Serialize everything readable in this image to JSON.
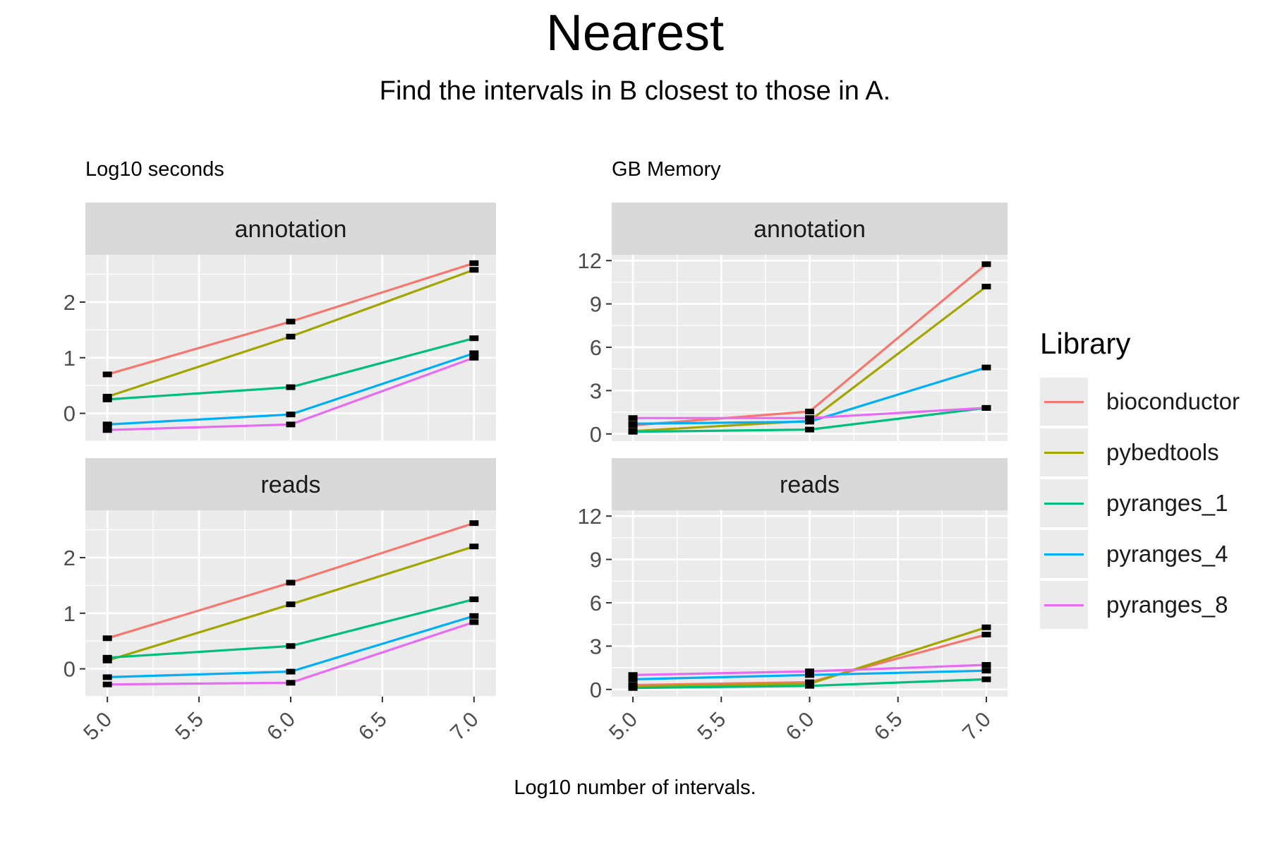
{
  "title": "Nearest",
  "subtitle": "Find the intervals in B closest to those in A.",
  "xlabel": "Log10 number of intervals.",
  "legend": {
    "title": "Library",
    "items": [
      {
        "label": "bioconductor",
        "color": "#F8766D"
      },
      {
        "label": "pybedtools",
        "color": "#A3A500"
      },
      {
        "label": "pyranges_1",
        "color": "#00BF7D"
      },
      {
        "label": "pyranges_4",
        "color": "#00B0F6"
      },
      {
        "label": "pyranges_8",
        "color": "#E76BF3"
      }
    ]
  },
  "chart_data": [
    {
      "type": "line",
      "caption": "Log10 seconds",
      "facet": "annotation",
      "x": [
        5.0,
        6.0,
        7.0
      ],
      "xticks": [
        "5.0",
        "5.5",
        "6.0",
        "6.5",
        "7.0"
      ],
      "yticks": [
        "0",
        "1",
        "2"
      ],
      "xlim": [
        4.88,
        7.12
      ],
      "ylim": [
        -0.5,
        2.85
      ],
      "grid": true,
      "legend_position": "right",
      "series": [
        {
          "name": "bioconductor",
          "values": [
            0.7,
            1.65,
            2.7
          ]
        },
        {
          "name": "pybedtools",
          "values": [
            0.3,
            1.38,
            2.58
          ]
        },
        {
          "name": "pyranges_1",
          "values": [
            0.25,
            0.47,
            1.35
          ]
        },
        {
          "name": "pyranges_4",
          "values": [
            -0.2,
            -0.02,
            1.08
          ]
        },
        {
          "name": "pyranges_8",
          "values": [
            -0.3,
            -0.2,
            1.0
          ]
        }
      ]
    },
    {
      "type": "line",
      "caption": "Log10 seconds",
      "facet": "reads",
      "x": [
        5.0,
        6.0,
        7.0
      ],
      "xticks": [
        "5.0",
        "5.5",
        "6.0",
        "6.5",
        "7.0"
      ],
      "yticks": [
        "0",
        "1",
        "2"
      ],
      "xlim": [
        4.88,
        7.12
      ],
      "ylim": [
        -0.5,
        2.85
      ],
      "grid": true,
      "legend_position": "right",
      "series": [
        {
          "name": "bioconductor",
          "values": [
            0.55,
            1.55,
            2.62
          ]
        },
        {
          "name": "pybedtools",
          "values": [
            0.15,
            1.16,
            2.2
          ]
        },
        {
          "name": "pyranges_1",
          "values": [
            0.2,
            0.41,
            1.25
          ]
        },
        {
          "name": "pyranges_4",
          "values": [
            -0.15,
            -0.05,
            0.95
          ]
        },
        {
          "name": "pyranges_8",
          "values": [
            -0.28,
            -0.25,
            0.84
          ]
        }
      ]
    },
    {
      "type": "line",
      "caption": "GB Memory",
      "facet": "annotation",
      "x": [
        5.0,
        6.0,
        7.0
      ],
      "xticks": [
        "5.0",
        "5.5",
        "6.0",
        "6.5",
        "7.0"
      ],
      "yticks": [
        "0",
        "3",
        "6",
        "9",
        "12"
      ],
      "xlim": [
        4.88,
        7.12
      ],
      "ylim": [
        -0.5,
        12.4
      ],
      "grid": true,
      "legend_position": "right",
      "series": [
        {
          "name": "bioconductor",
          "values": [
            0.6,
            1.55,
            11.75
          ]
        },
        {
          "name": "pybedtools",
          "values": [
            0.2,
            0.9,
            10.2
          ]
        },
        {
          "name": "pyranges_1",
          "values": [
            0.15,
            0.3,
            1.8
          ]
        },
        {
          "name": "pyranges_4",
          "values": [
            0.7,
            0.85,
            4.6
          ]
        },
        {
          "name": "pyranges_8",
          "values": [
            1.1,
            1.1,
            1.8
          ]
        }
      ]
    },
    {
      "type": "line",
      "caption": "GB Memory",
      "facet": "reads",
      "x": [
        5.0,
        6.0,
        7.0
      ],
      "xticks": [
        "5.0",
        "5.5",
        "6.0",
        "6.5",
        "7.0"
      ],
      "yticks": [
        "0",
        "3",
        "6",
        "9",
        "12"
      ],
      "xlim": [
        4.88,
        7.12
      ],
      "ylim": [
        -0.5,
        12.4
      ],
      "grid": true,
      "legend_position": "right",
      "series": [
        {
          "name": "bioconductor",
          "values": [
            0.3,
            0.5,
            3.8
          ]
        },
        {
          "name": "pybedtools",
          "values": [
            0.2,
            0.4,
            4.3
          ]
        },
        {
          "name": "pyranges_1",
          "values": [
            0.1,
            0.25,
            0.7
          ]
        },
        {
          "name": "pyranges_4",
          "values": [
            0.7,
            1.0,
            1.3
          ]
        },
        {
          "name": "pyranges_8",
          "values": [
            1.0,
            1.25,
            1.7
          ]
        }
      ]
    }
  ]
}
